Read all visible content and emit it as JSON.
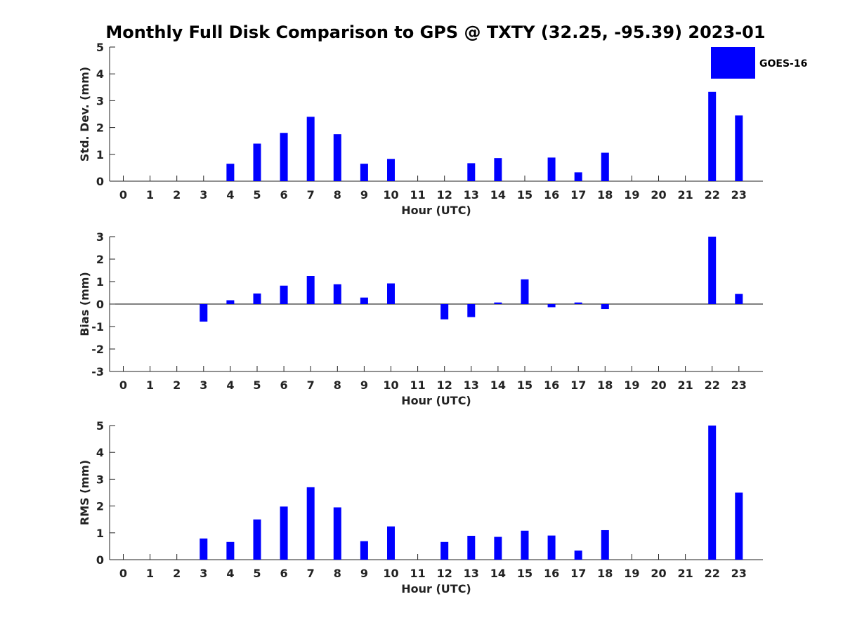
{
  "title": "Monthly Full Disk Comparison to GPS @ TXTY (32.25, -95.39) 2023-01",
  "legend": {
    "label": "GOES-16"
  },
  "colors": {
    "bar": "#0000ff",
    "axis": "#222222",
    "text": "#000000"
  },
  "chart_data": [
    {
      "type": "bar",
      "name": "std-dev",
      "series_name": "GOES-16",
      "categories": [
        "0",
        "1",
        "2",
        "3",
        "4",
        "5",
        "6",
        "7",
        "8",
        "9",
        "10",
        "11",
        "12",
        "13",
        "14",
        "15",
        "16",
        "17",
        "18",
        "19",
        "20",
        "21",
        "22",
        "23"
      ],
      "values": [
        0,
        0,
        0,
        0,
        0.65,
        1.4,
        1.8,
        2.4,
        1.75,
        0.65,
        0.83,
        0,
        0,
        0.67,
        0.86,
        0,
        0.88,
        0.33,
        1.06,
        0,
        0,
        0,
        3.33,
        2.45
      ],
      "ylim": [
        0,
        5
      ],
      "yticks": [
        "0",
        "1",
        "2",
        "3",
        "4",
        "5"
      ],
      "xlabel": "Hour (UTC)",
      "ylabel": "Std. Dev. (mm)"
    },
    {
      "type": "bar",
      "name": "bias",
      "series_name": "GOES-16",
      "categories": [
        "0",
        "1",
        "2",
        "3",
        "4",
        "5",
        "6",
        "7",
        "8",
        "9",
        "10",
        "11",
        "12",
        "13",
        "14",
        "15",
        "16",
        "17",
        "18",
        "19",
        "20",
        "21",
        "22",
        "23"
      ],
      "values": [
        0,
        0,
        0,
        -0.78,
        0.17,
        0.47,
        0.82,
        1.25,
        0.88,
        0.29,
        0.92,
        0,
        -0.68,
        -0.58,
        0.07,
        1.1,
        -0.14,
        0.07,
        -0.22,
        0,
        0,
        0,
        3.0,
        0.45
      ],
      "ylim": [
        -3,
        3
      ],
      "yticks": [
        "-3",
        "-2",
        "-1",
        "0",
        "1",
        "2",
        "3"
      ],
      "xlabel": "Hour (UTC)",
      "ylabel": "Bias (mm)"
    },
    {
      "type": "bar",
      "name": "rms",
      "series_name": "GOES-16",
      "categories": [
        "0",
        "1",
        "2",
        "3",
        "4",
        "5",
        "6",
        "7",
        "8",
        "9",
        "10",
        "11",
        "12",
        "13",
        "14",
        "15",
        "16",
        "17",
        "18",
        "19",
        "20",
        "21",
        "22",
        "23"
      ],
      "values": [
        0,
        0,
        0,
        0.79,
        0.66,
        1.5,
        1.98,
        2.7,
        1.95,
        0.69,
        1.24,
        0,
        0.66,
        0.89,
        0.85,
        1.08,
        0.9,
        0.34,
        1.1,
        0,
        0,
        0,
        5.0,
        2.5
      ],
      "ylim": [
        0,
        5
      ],
      "yticks": [
        "0",
        "1",
        "2",
        "3",
        "4",
        "5"
      ],
      "xlabel": "Hour (UTC)",
      "ylabel": "RMS (mm)"
    }
  ]
}
